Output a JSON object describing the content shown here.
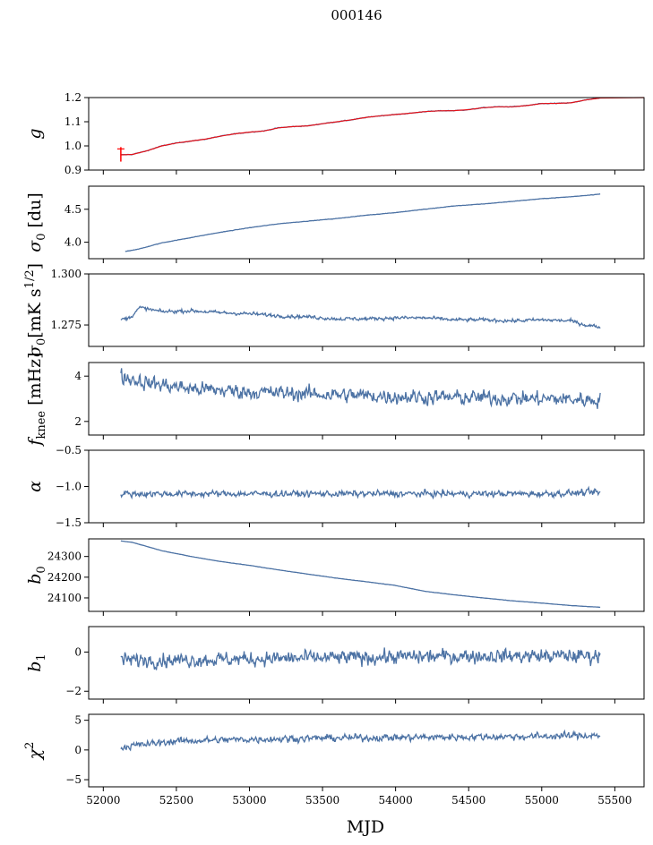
{
  "figure": {
    "title": "000146",
    "xlabel": "MJD"
  },
  "colors": {
    "series": "#4c72a4",
    "fit": "#ff0000",
    "axis": "#000000",
    "background": "#ffffff"
  },
  "chart_data": [
    {
      "type": "line",
      "panel": "g",
      "ylabel": "g",
      "ylabel_sub": "",
      "ylabel_sup": "",
      "ylabel_suffix": "",
      "xlim": [
        51900,
        55700
      ],
      "ylim": [
        0.9,
        1.2
      ],
      "yticks": [
        0.9,
        1.0,
        1.1,
        1.2
      ],
      "ytick_labels": [
        "0.9",
        "1.0",
        "1.1",
        "1.2"
      ],
      "x": [
        52120,
        52200,
        52300,
        52400,
        52500,
        52600,
        52700,
        52800,
        52900,
        53000,
        53100,
        53200,
        53300,
        53400,
        53500,
        53600,
        53700,
        53800,
        53900,
        54000,
        54100,
        54200,
        54300,
        54400,
        54500,
        54600,
        54700,
        54800,
        54900,
        55000,
        55100,
        55200,
        55300,
        55400
      ],
      "y": [
        0.963,
        0.965,
        0.98,
        1.0,
        1.012,
        1.02,
        1.028,
        1.04,
        1.05,
        1.057,
        1.062,
        1.075,
        1.08,
        1.083,
        1.092,
        1.1,
        1.108,
        1.118,
        1.125,
        1.13,
        1.135,
        1.142,
        1.145,
        1.146,
        1.15,
        1.158,
        1.162,
        1.162,
        1.167,
        1.175,
        1.176,
        1.178,
        1.19,
        1.198
      ],
      "noise": 0.002,
      "has_fit_overlay": true,
      "fit_x_end": 55700,
      "fit_y_end": 1.2,
      "fit_start_spike": [
        0.935,
        0.995
      ]
    },
    {
      "type": "line",
      "panel": "sigma0_du",
      "ylabel": "σ",
      "ylabel_sub": "0",
      "ylabel_sup": "",
      "ylabel_suffix": " [du]",
      "xlim": [
        51900,
        55700
      ],
      "ylim": [
        3.75,
        4.85
      ],
      "yticks": [
        4.0,
        4.5
      ],
      "ytick_labels": [
        "4.0",
        "4.5"
      ],
      "x": [
        52150,
        52250,
        52400,
        52600,
        52800,
        53000,
        53200,
        53400,
        53600,
        53800,
        54000,
        54200,
        54400,
        54600,
        54800,
        55000,
        55200,
        55400
      ],
      "y": [
        3.86,
        3.9,
        3.99,
        4.07,
        4.15,
        4.22,
        4.28,
        4.32,
        4.36,
        4.41,
        4.45,
        4.5,
        4.55,
        4.58,
        4.62,
        4.66,
        4.69,
        4.73
      ],
      "noise": 0.004
    },
    {
      "type": "line",
      "panel": "sigma0_mK",
      "ylabel": "σ",
      "ylabel_sub": "0",
      "ylabel_sup": "",
      "ylabel_suffix": "[mK s^1/2]",
      "xlim": [
        51900,
        55700
      ],
      "ylim": [
        1.2645,
        1.3
      ],
      "yticks": [
        1.275,
        1.3
      ],
      "ytick_labels": [
        "1.275",
        "1.300"
      ],
      "x": [
        52120,
        52180,
        52250,
        52400,
        52600,
        52800,
        53000,
        53200,
        53400,
        53600,
        53800,
        54000,
        54200,
        54400,
        54600,
        54800,
        55000,
        55200,
        55300,
        55400
      ],
      "y": [
        1.2777,
        1.2785,
        1.2835,
        1.2815,
        1.282,
        1.281,
        1.2805,
        1.2795,
        1.279,
        1.278,
        1.278,
        1.2785,
        1.2785,
        1.2775,
        1.2775,
        1.277,
        1.2775,
        1.277,
        1.275,
        1.274
      ],
      "noise": 0.0012
    },
    {
      "type": "line",
      "panel": "fknee",
      "ylabel": "f",
      "ylabel_sub": "knee",
      "ylabel_sup": "",
      "ylabel_suffix": " [mHz]",
      "xlim": [
        51900,
        55700
      ],
      "ylim": [
        1.4,
        4.6
      ],
      "yticks": [
        2,
        4
      ],
      "ytick_labels": [
        "2",
        "4"
      ],
      "x": [
        52120,
        52300,
        52600,
        53000,
        53500,
        54000,
        54500,
        55000,
        55400
      ],
      "y": [
        4.0,
        3.7,
        3.45,
        3.3,
        3.2,
        3.1,
        3.05,
        3.0,
        2.95
      ],
      "noise": 0.45
    },
    {
      "type": "line",
      "panel": "alpha",
      "ylabel": "α",
      "ylabel_sub": "",
      "ylabel_sup": "",
      "ylabel_suffix": "",
      "xlim": [
        51900,
        55700
      ],
      "ylim": [
        -1.5,
        -0.5
      ],
      "yticks": [
        -1.5,
        -1.0,
        -0.5
      ],
      "ytick_labels": [
        "−1.5",
        "−1.0",
        "−0.5"
      ],
      "x": [
        52120,
        52500,
        53000,
        53500,
        54000,
        54500,
        55000,
        55400
      ],
      "y": [
        -1.1,
        -1.1,
        -1.1,
        -1.1,
        -1.1,
        -1.1,
        -1.1,
        -1.08
      ],
      "noise": 0.06
    },
    {
      "type": "line",
      "panel": "b0",
      "ylabel": "b",
      "ylabel_sub": "0",
      "ylabel_sup": "",
      "ylabel_suffix": "",
      "xlim": [
        51900,
        55700
      ],
      "ylim": [
        24035,
        24385
      ],
      "yticks": [
        24100,
        24200,
        24300
      ],
      "ytick_labels": [
        "24100",
        "24200",
        "24300"
      ],
      "x": [
        52120,
        52200,
        52400,
        52600,
        52800,
        53000,
        53200,
        53400,
        53600,
        53800,
        54000,
        54200,
        54400,
        54600,
        54800,
        55000,
        55200,
        55400
      ],
      "y": [
        24375,
        24368,
        24328,
        24300,
        24276,
        24257,
        24235,
        24215,
        24195,
        24178,
        24160,
        24132,
        24115,
        24100,
        24086,
        24075,
        24063,
        24055
      ],
      "noise": 0.8
    },
    {
      "type": "line",
      "panel": "b1",
      "ylabel": "b",
      "ylabel_sub": "1",
      "ylabel_sup": "",
      "ylabel_suffix": "",
      "xlim": [
        51900,
        55700
      ],
      "ylim": [
        -2.4,
        1.3
      ],
      "yticks": [
        -2,
        0
      ],
      "ytick_labels": [
        "−2",
        "0"
      ],
      "x": [
        52120,
        52500,
        53000,
        53500,
        54000,
        54500,
        55000,
        55400
      ],
      "y": [
        -0.4,
        -0.4,
        -0.35,
        -0.3,
        -0.25,
        -0.2,
        -0.2,
        -0.2
      ],
      "noise": 0.5
    },
    {
      "type": "line",
      "panel": "chi2",
      "ylabel": "χ",
      "ylabel_sub": "",
      "ylabel_sup": "2",
      "ylabel_suffix": "",
      "xlim": [
        51900,
        55700
      ],
      "ylim": [
        -6.2,
        6.0
      ],
      "yticks": [
        -5,
        0,
        5
      ],
      "ytick_labels": [
        "−5",
        "0",
        "5"
      ],
      "xticks": [
        52000,
        52500,
        53000,
        53500,
        54000,
        54500,
        55000,
        55500
      ],
      "xtick_labels": [
        "52000",
        "52500",
        "53000",
        "53500",
        "54000",
        "54500",
        "55000",
        "55500"
      ],
      "x": [
        52120,
        52500,
        53000,
        53500,
        54000,
        54500,
        55000,
        55400
      ],
      "y": [
        0.5,
        1.5,
        1.8,
        2.0,
        2.1,
        2.2,
        2.3,
        2.5
      ],
      "noise": 0.8
    }
  ]
}
